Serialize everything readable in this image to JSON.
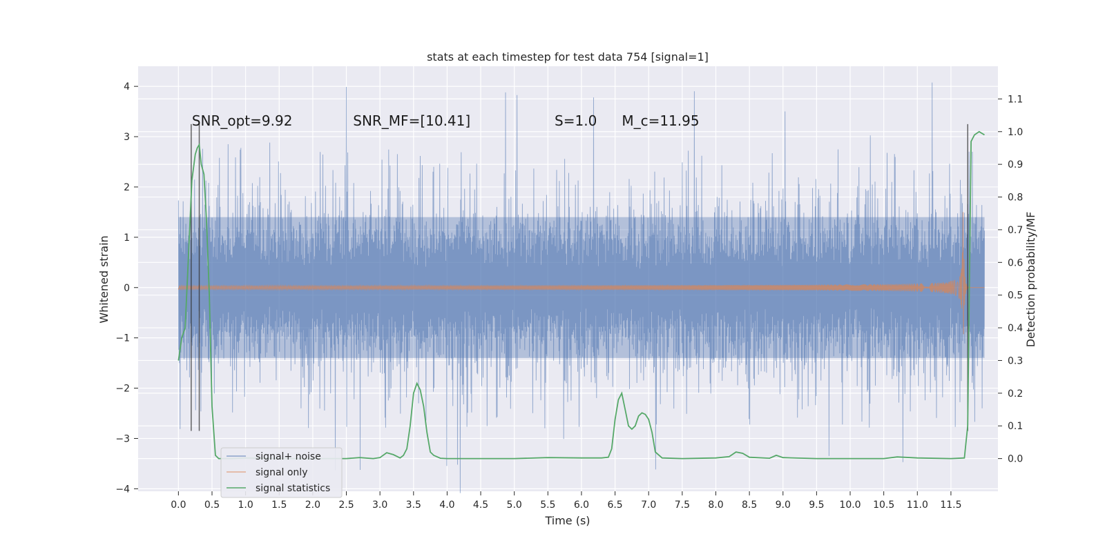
{
  "chart_data": {
    "type": "line",
    "title": "stats at each timestep for test data 754 [signal=1]",
    "xlabel": "Time (s)",
    "ylabel": "Whitened strain",
    "y2label": "Detection probability/MF",
    "xlim": [
      -0.6,
      12.2
    ],
    "ylim": [
      -4.05,
      4.4
    ],
    "y2lim": [
      -0.1,
      1.2
    ],
    "xticks": [
      0.0,
      0.5,
      1.0,
      1.5,
      2.0,
      2.5,
      3.0,
      3.5,
      4.0,
      4.5,
      5.0,
      5.5,
      6.0,
      6.5,
      7.0,
      7.5,
      8.0,
      8.5,
      9.0,
      9.5,
      10.0,
      10.5,
      11.0,
      11.5
    ],
    "xtick_labels": [
      "0.0",
      "0.5",
      "1.0",
      "1.5",
      "2.0",
      "2.5",
      "3.0",
      "3.5",
      "4.0",
      "4.5",
      "5.0",
      "5.5",
      "6.0",
      "6.5",
      "7.0",
      "7.5",
      "8.0",
      "8.5",
      "9.0",
      "9.5",
      "10.0",
      "10.5",
      "11.0",
      "11.5"
    ],
    "yticks": [
      -4,
      -3,
      -2,
      -1,
      0,
      1,
      2,
      3,
      4
    ],
    "ytick_labels": [
      "−4",
      "−3",
      "−2",
      "−1",
      "0",
      "1",
      "2",
      "3",
      "4"
    ],
    "y2ticks": [
      0.0,
      0.1,
      0.2,
      0.3,
      0.4,
      0.5,
      0.6,
      0.7,
      0.8,
      0.9,
      1.0,
      1.1
    ],
    "y2tick_labels": [
      "0.0",
      "0.1",
      "0.2",
      "0.3",
      "0.4",
      "0.5",
      "0.6",
      "0.7",
      "0.8",
      "0.9",
      "1.0",
      "1.1"
    ],
    "grid": true,
    "legend_position": "lower-left",
    "annotations": [
      {
        "text": "SNR_opt=9.92",
        "x": 0.2
      },
      {
        "text": "SNR_MF=[10.41]",
        "x": 2.6
      },
      {
        "text": "S=1.0",
        "x": 5.6
      },
      {
        "text": "M_c=11.95",
        "x": 6.6
      }
    ],
    "annotation_y": 3.25,
    "vertical_markers": [
      {
        "x": 0.19,
        "y_top": 3.25,
        "y_bottom": -2.85
      },
      {
        "x": 0.31,
        "y_top": 3.25,
        "y_bottom": -2.85
      },
      {
        "x": 11.75,
        "y_top": 3.25,
        "y_bottom": -2.85
      }
    ],
    "series": [
      {
        "name": "signal+ noise",
        "color": "#4c72b0",
        "axis": "left",
        "kind": "noisy-strain",
        "t_start": 0.0,
        "t_end": 12.0,
        "band_core": 1.4,
        "spike_max": 4.1
      },
      {
        "name": "signal only",
        "color": "#dd8452",
        "axis": "left",
        "kind": "chirp",
        "t_start": 0.0,
        "t_end": 12.0,
        "merger_time": 11.68,
        "peak_amplitude": 1.5
      },
      {
        "name": "signal statistics",
        "color": "#55a868",
        "axis": "right",
        "x": [
          0.0,
          0.05,
          0.1,
          0.15,
          0.2,
          0.25,
          0.28,
          0.31,
          0.34,
          0.38,
          0.42,
          0.46,
          0.5,
          0.55,
          0.6,
          0.8,
          1.0,
          1.5,
          2.0,
          2.5,
          2.7,
          2.9,
          3.0,
          3.1,
          3.2,
          3.3,
          3.35,
          3.4,
          3.45,
          3.5,
          3.55,
          3.6,
          3.65,
          3.7,
          3.75,
          3.8,
          3.9,
          4.0,
          4.5,
          5.0,
          5.5,
          6.0,
          6.3,
          6.4,
          6.45,
          6.5,
          6.55,
          6.6,
          6.65,
          6.7,
          6.75,
          6.8,
          6.85,
          6.9,
          6.95,
          7.0,
          7.05,
          7.1,
          7.2,
          7.5,
          8.0,
          8.2,
          8.3,
          8.4,
          8.5,
          8.8,
          8.9,
          9.0,
          9.5,
          10.0,
          10.5,
          10.7,
          11.0,
          11.5,
          11.7,
          11.75,
          11.8,
          11.85,
          11.92,
          12.0
        ],
        "y": [
          0.3,
          0.37,
          0.4,
          0.62,
          0.85,
          0.93,
          0.95,
          0.96,
          0.9,
          0.87,
          0.72,
          0.5,
          0.16,
          0.01,
          0.0,
          0.0,
          0.002,
          0.0,
          0.0,
          0.0,
          0.003,
          0.0,
          0.003,
          0.018,
          0.012,
          0.002,
          0.01,
          0.03,
          0.1,
          0.2,
          0.23,
          0.21,
          0.16,
          0.08,
          0.02,
          0.01,
          0.001,
          0.0,
          0.0,
          0.0,
          0.003,
          0.002,
          0.002,
          0.004,
          0.03,
          0.12,
          0.18,
          0.2,
          0.15,
          0.1,
          0.09,
          0.1,
          0.13,
          0.14,
          0.135,
          0.12,
          0.08,
          0.02,
          0.002,
          0.0,
          0.002,
          0.006,
          0.02,
          0.016,
          0.004,
          0.001,
          0.01,
          0.003,
          0.0,
          0.0,
          0.0,
          0.005,
          0.002,
          0.0,
          0.002,
          0.1,
          0.97,
          0.99,
          1.0,
          0.99
        ]
      }
    ]
  }
}
